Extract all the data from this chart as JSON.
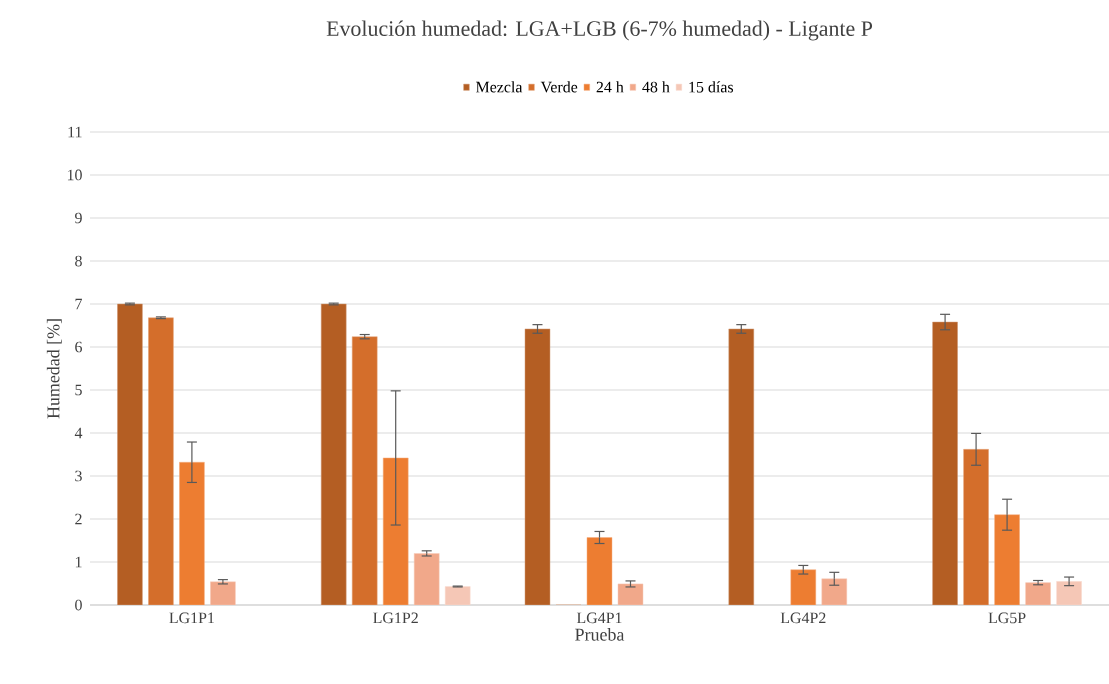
{
  "chart_data": {
    "type": "bar",
    "title": "Evolución humedad: LGA+LGB (6-7% humedad) - Ligante P",
    "xlabel": "Prueba",
    "ylabel": "Humedad [%]",
    "categories": [
      "LG1P1",
      "LG1P2",
      "LG4P1",
      "LG4P2",
      "LG5P"
    ],
    "series": [
      {
        "name": "Mezcla",
        "color": "#b45e23",
        "values": [
          7.0,
          7.0,
          6.42,
          6.42,
          6.58
        ],
        "errors": [
          0.02,
          0.02,
          0.1,
          0.1,
          0.18
        ]
      },
      {
        "name": "Verde",
        "color": "#d46e2b",
        "values": [
          6.68,
          6.24,
          0,
          null,
          3.62
        ],
        "errors": [
          0.02,
          0.05,
          null,
          null,
          0.37
        ]
      },
      {
        "name": "24 h",
        "color": "#ed7d31",
        "values": [
          3.32,
          3.42,
          1.57,
          0.82,
          2.1
        ],
        "errors": [
          0.47,
          1.56,
          0.14,
          0.1,
          0.36
        ]
      },
      {
        "name": "48 h",
        "color": "#f1a88a",
        "values": [
          0.54,
          1.2,
          0.49,
          0.61,
          0.52
        ],
        "errors": [
          0.05,
          0.06,
          0.07,
          0.15,
          0.05
        ]
      },
      {
        "name": "15 días",
        "color": "#f5c7b6",
        "values": [
          null,
          0.43,
          null,
          null,
          0.55
        ],
        "errors": [
          null,
          0.01,
          null,
          null,
          0.1
        ]
      }
    ],
    "ylim": [
      0,
      11
    ],
    "yticks": [
      0,
      1,
      2,
      3,
      4,
      5,
      6,
      7,
      8,
      9,
      10,
      11
    ],
    "grid": "y",
    "legend": "top"
  }
}
